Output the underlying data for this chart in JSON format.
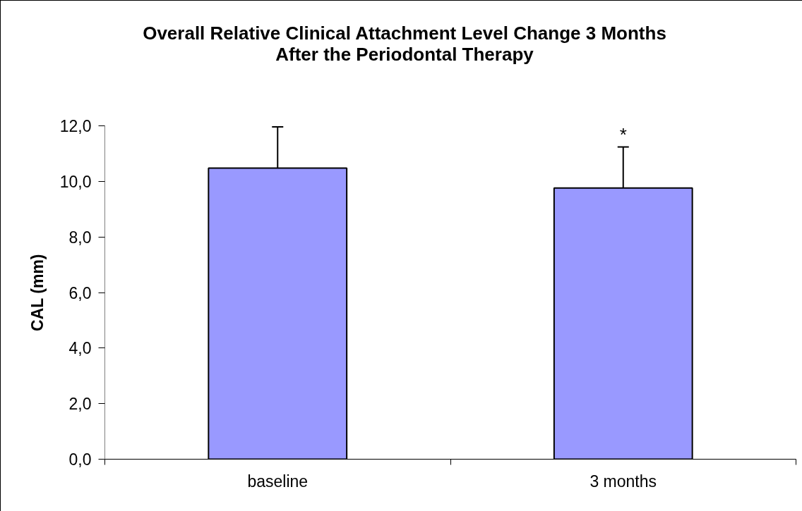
{
  "chart_data": {
    "type": "bar",
    "title": "Overall Relative Clinical Attachment Level Change 3 Months\nAfter the Periodontal Therapy",
    "ylabel": "CAL (mm)",
    "categories": [
      "baseline",
      "3 months"
    ],
    "values": [
      10.48,
      9.76
    ],
    "errors": [
      [
        10.48,
        11.96
      ],
      [
        9.76,
        11.24
      ]
    ],
    "color": "#9999ff",
    "ylim": [
      0,
      12
    ],
    "yticks": [
      {
        "value": 0,
        "label": "0,0"
      },
      {
        "value": 2,
        "label": "2,0"
      },
      {
        "value": 4,
        "label": "4,0"
      },
      {
        "value": 6,
        "label": "6,0"
      },
      {
        "value": 8,
        "label": "8,0"
      },
      {
        "value": 10,
        "label": "10,0"
      },
      {
        "value": 12,
        "label": "12,0"
      }
    ],
    "grid": false,
    "annotations": [
      {
        "text": "*",
        "x": "3 months",
        "y": 11.24
      }
    ]
  }
}
